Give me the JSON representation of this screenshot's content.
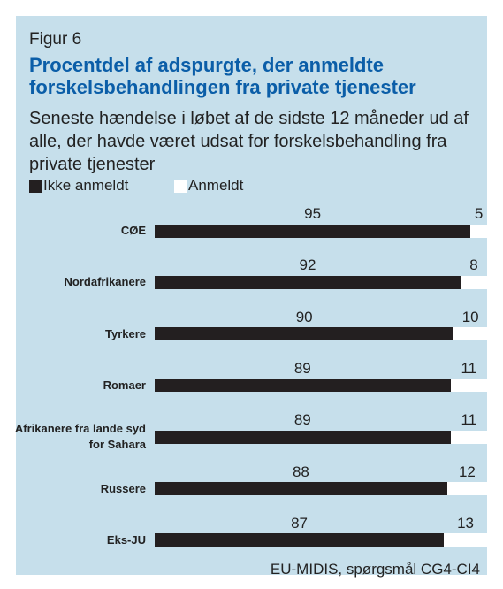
{
  "chart_data": {
    "type": "bar",
    "orientation": "horizontal",
    "stacked": true,
    "figure_label": "Figur 6",
    "title": "Procentdel af adspurgte, der anmeldte forskelsbehandlingen fra private tjenester",
    "subtitle": "Seneste hændelse i løbet af de sidste 12 måneder ud af alle, der havde været udsat for forskelsbehandling fra private tjenester",
    "source": "EU-MIDIS, spørgsmål CG4-CI4",
    "categories": [
      "CØE",
      "Nordafrikanere",
      "Tyrkere",
      "Romaer",
      "Afrikanere fra lande syd for Sahara",
      "Russere",
      "Eks-JU"
    ],
    "series": [
      {
        "name": "Ikke anmeldt",
        "color": "#231f20",
        "values": [
          95,
          92,
          90,
          89,
          89,
          88,
          87
        ]
      },
      {
        "name": "Anmeldt",
        "color": "#ffffff",
        "values": [
          5,
          8,
          10,
          11,
          11,
          12,
          13
        ]
      }
    ],
    "xlim": [
      0,
      100
    ]
  }
}
